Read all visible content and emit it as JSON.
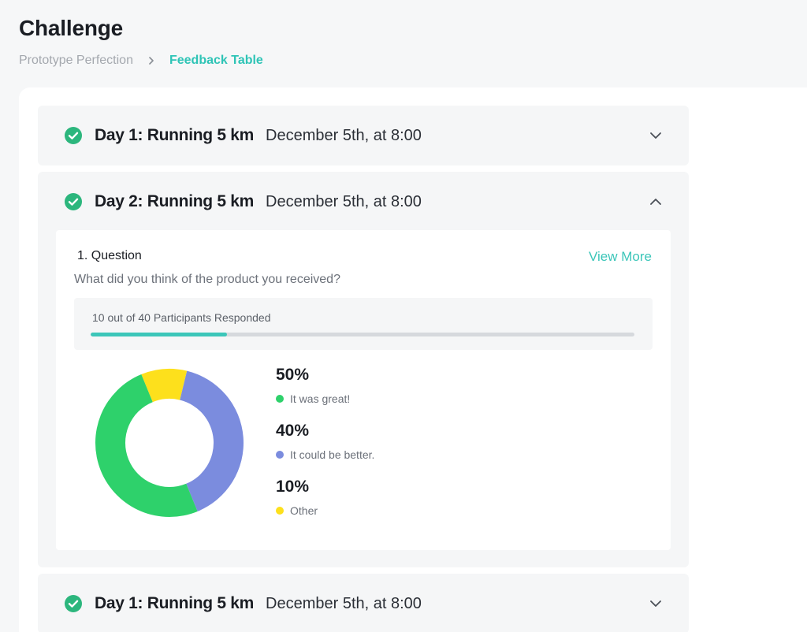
{
  "page": {
    "title": "Challenge"
  },
  "breadcrumb": {
    "parent": "Prototype Perfection",
    "current": "Feedback Table"
  },
  "accent_color": "#3cc6b9",
  "check_color": "#2cb67d",
  "cards": [
    {
      "title": "Day 1: Running 5 km",
      "date": "December 5th, at 8:00",
      "status_icon": "check-circle-icon",
      "toggle_icon": "chevron-down-icon"
    },
    {
      "title": "Day 2: Running 5 km",
      "date": "December 5th, at 8:00",
      "status_icon": "check-circle-icon",
      "toggle_icon": "chevron-up-icon",
      "question": {
        "label": "1. Question",
        "view_more": "View More",
        "text": "What did you think of the product you received?",
        "responses_text": "10 out of 40 Participants Responded",
        "responded": 10,
        "total": 40
      }
    },
    {
      "title": "Day 1: Running 5 km",
      "date": "December 5th, at 8:00",
      "status_icon": "check-circle-icon",
      "toggle_icon": "chevron-down-icon"
    }
  ],
  "chart_data": {
    "type": "pie",
    "style": "donut",
    "labels": [
      "It was great!",
      "It could be better.",
      "Other"
    ],
    "values": [
      50,
      40,
      10
    ],
    "value_labels": [
      "50%",
      "40%",
      "10%"
    ],
    "colors": [
      "#2ed16b",
      "#7b8cde",
      "#fde01c"
    ]
  }
}
